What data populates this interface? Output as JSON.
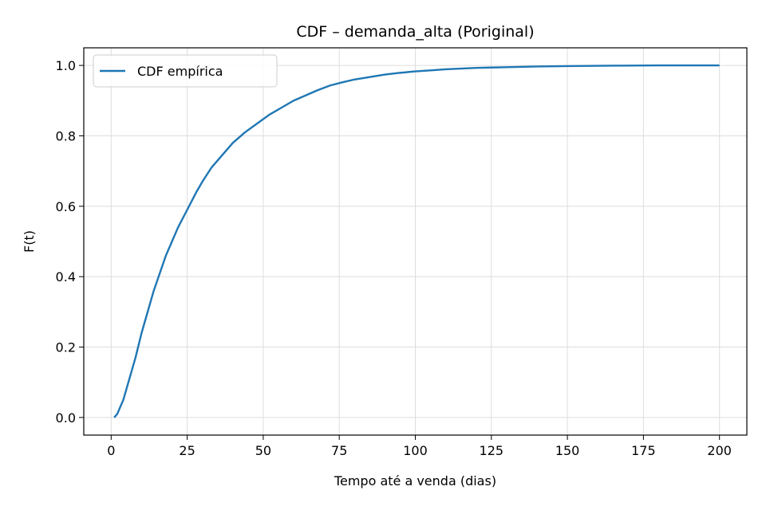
{
  "chart_data": {
    "type": "line",
    "title": "CDF – demanda_alta (Poriginal)",
    "xlabel": "Tempo até a venda (dias)",
    "ylabel": "F(t)",
    "xlim": [
      -9,
      209
    ],
    "ylim": [
      -0.05,
      1.05
    ],
    "xticks": [
      0,
      25,
      50,
      75,
      100,
      125,
      150,
      175,
      200
    ],
    "yticks": [
      0.0,
      0.2,
      0.4,
      0.6,
      0.8,
      1.0
    ],
    "xtick_labels": [
      "0",
      "25",
      "50",
      "75",
      "100",
      "125",
      "150",
      "175",
      "200"
    ],
    "ytick_labels": [
      "0.0",
      "0.2",
      "0.4",
      "0.6",
      "0.8",
      "1.0"
    ],
    "grid": true,
    "legend_position": "top-left",
    "colors": {
      "line": "#1f77b4",
      "grid": "#dddddd",
      "axes": "#000000"
    },
    "series": [
      {
        "name": "CDF empírica",
        "x": [
          1,
          2,
          3,
          4,
          5,
          6,
          7,
          8,
          10,
          12,
          14,
          16,
          18,
          20,
          22,
          25,
          28,
          30,
          33,
          36,
          40,
          44,
          48,
          52,
          56,
          60,
          64,
          68,
          72,
          76,
          80,
          85,
          90,
          95,
          100,
          105,
          110,
          115,
          120,
          125,
          130,
          140,
          150,
          160,
          170,
          180,
          190,
          200
        ],
        "y": [
          0.0,
          0.01,
          0.03,
          0.05,
          0.08,
          0.11,
          0.14,
          0.17,
          0.24,
          0.3,
          0.36,
          0.41,
          0.46,
          0.5,
          0.54,
          0.59,
          0.64,
          0.67,
          0.71,
          0.74,
          0.78,
          0.81,
          0.835,
          0.86,
          0.88,
          0.9,
          0.915,
          0.93,
          0.943,
          0.952,
          0.96,
          0.967,
          0.974,
          0.979,
          0.983,
          0.986,
          0.989,
          0.991,
          0.993,
          0.994,
          0.995,
          0.997,
          0.998,
          0.999,
          0.9995,
          1.0,
          1.0,
          1.0
        ]
      }
    ]
  }
}
